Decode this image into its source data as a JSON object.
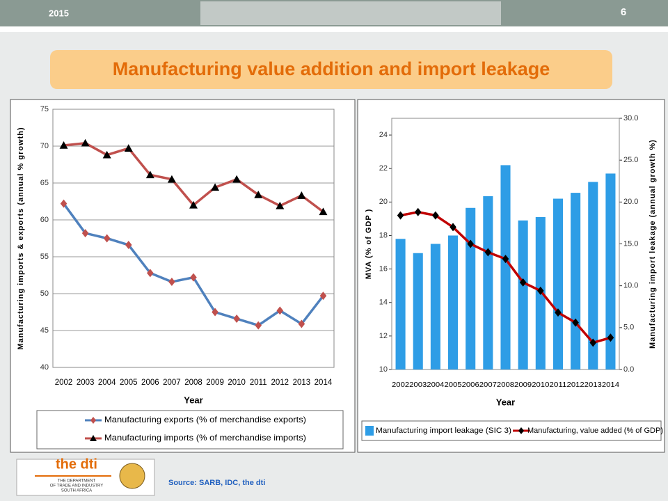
{
  "slide": {
    "year": "2015",
    "page": "6",
    "title": "Manufacturing value addition and import leakage",
    "source": "Source: SARB, IDC, the dti",
    "logo": {
      "name": "the dti",
      "line1": "THE DEPARTMENT",
      "line2": "OF TRADE AND INDUSTRY",
      "line3": "SOUTH AFRICA"
    }
  },
  "chart_data": [
    {
      "type": "line",
      "xlabel": "Year",
      "ylabel": "Manufacturing imports & exports (annual % growth)",
      "categories": [
        "2002",
        "2003",
        "2004",
        "2005",
        "2006",
        "2007",
        "2008",
        "2009",
        "2010",
        "2011",
        "2012",
        "2013",
        "2014"
      ],
      "series": [
        {
          "name": "Manufacturing exports (% of merchandise exports)",
          "color": "#4f81bd",
          "marker": "diamond",
          "marker_color": "#c0504d",
          "values": [
            62.2,
            58.2,
            57.5,
            56.6,
            52.8,
            51.6,
            52.2,
            47.5,
            46.6,
            45.7,
            47.7,
            45.9,
            49.7
          ]
        },
        {
          "name": "Manufacturing imports (% of merchandise imports)",
          "color": "#c0504d",
          "marker": "triangle",
          "marker_color": "#000000",
          "values": [
            70.1,
            70.4,
            68.8,
            69.7,
            66.1,
            65.5,
            62.0,
            64.4,
            65.5,
            63.4,
            61.9,
            63.3,
            61.1
          ]
        }
      ],
      "ylim": [
        40,
        75
      ],
      "yticks": [
        40,
        45,
        50,
        55,
        60,
        65,
        70,
        75
      ],
      "grid": true,
      "legend": "bottom"
    },
    {
      "type": "bar-line",
      "xlabel": "Year",
      "ylabel": "MVA (% of GDP )",
      "y2label": "Manufacturing import leakage (annual growth %)",
      "categories": [
        "2002",
        "2003",
        "2004",
        "2005",
        "2006",
        "2007",
        "2008",
        "2009",
        "2010",
        "2011",
        "2012",
        "2013",
        "2014"
      ],
      "series": [
        {
          "name": "Manufacturing import leakage (SIC 3)",
          "kind": "bar",
          "axis": "y2",
          "color": "#2e9de6",
          "values": [
            15.6,
            13.9,
            15.0,
            16.0,
            19.3,
            20.7,
            24.4,
            17.8,
            18.2,
            20.4,
            21.1,
            22.4,
            23.4
          ]
        },
        {
          "name": "Manufacturing, value added (% of GDP)",
          "kind": "line",
          "axis": "y",
          "color": "#c00000",
          "marker": "diamond",
          "marker_color": "#000000",
          "values": [
            19.2,
            19.4,
            19.2,
            18.5,
            17.5,
            17.0,
            16.6,
            15.2,
            14.7,
            13.4,
            12.8,
            11.6,
            11.9
          ]
        }
      ],
      "ylim": [
        10,
        25
      ],
      "yticks": [
        10,
        12,
        14,
        16,
        18,
        20,
        22,
        24
      ],
      "y2lim": [
        0,
        30
      ],
      "y2ticks": [
        {
          "value": 0,
          "label": "0.0"
        },
        {
          "value": 5,
          "label": "5.0"
        },
        {
          "value": 10,
          "label": "10.0"
        },
        {
          "value": 15,
          "label": "15.0"
        },
        {
          "value": 20,
          "label": "20.0"
        },
        {
          "value": 25,
          "label": "25.0"
        },
        {
          "value": 30,
          "label": "30.0"
        }
      ],
      "grid": false,
      "legend": "bottom"
    }
  ]
}
